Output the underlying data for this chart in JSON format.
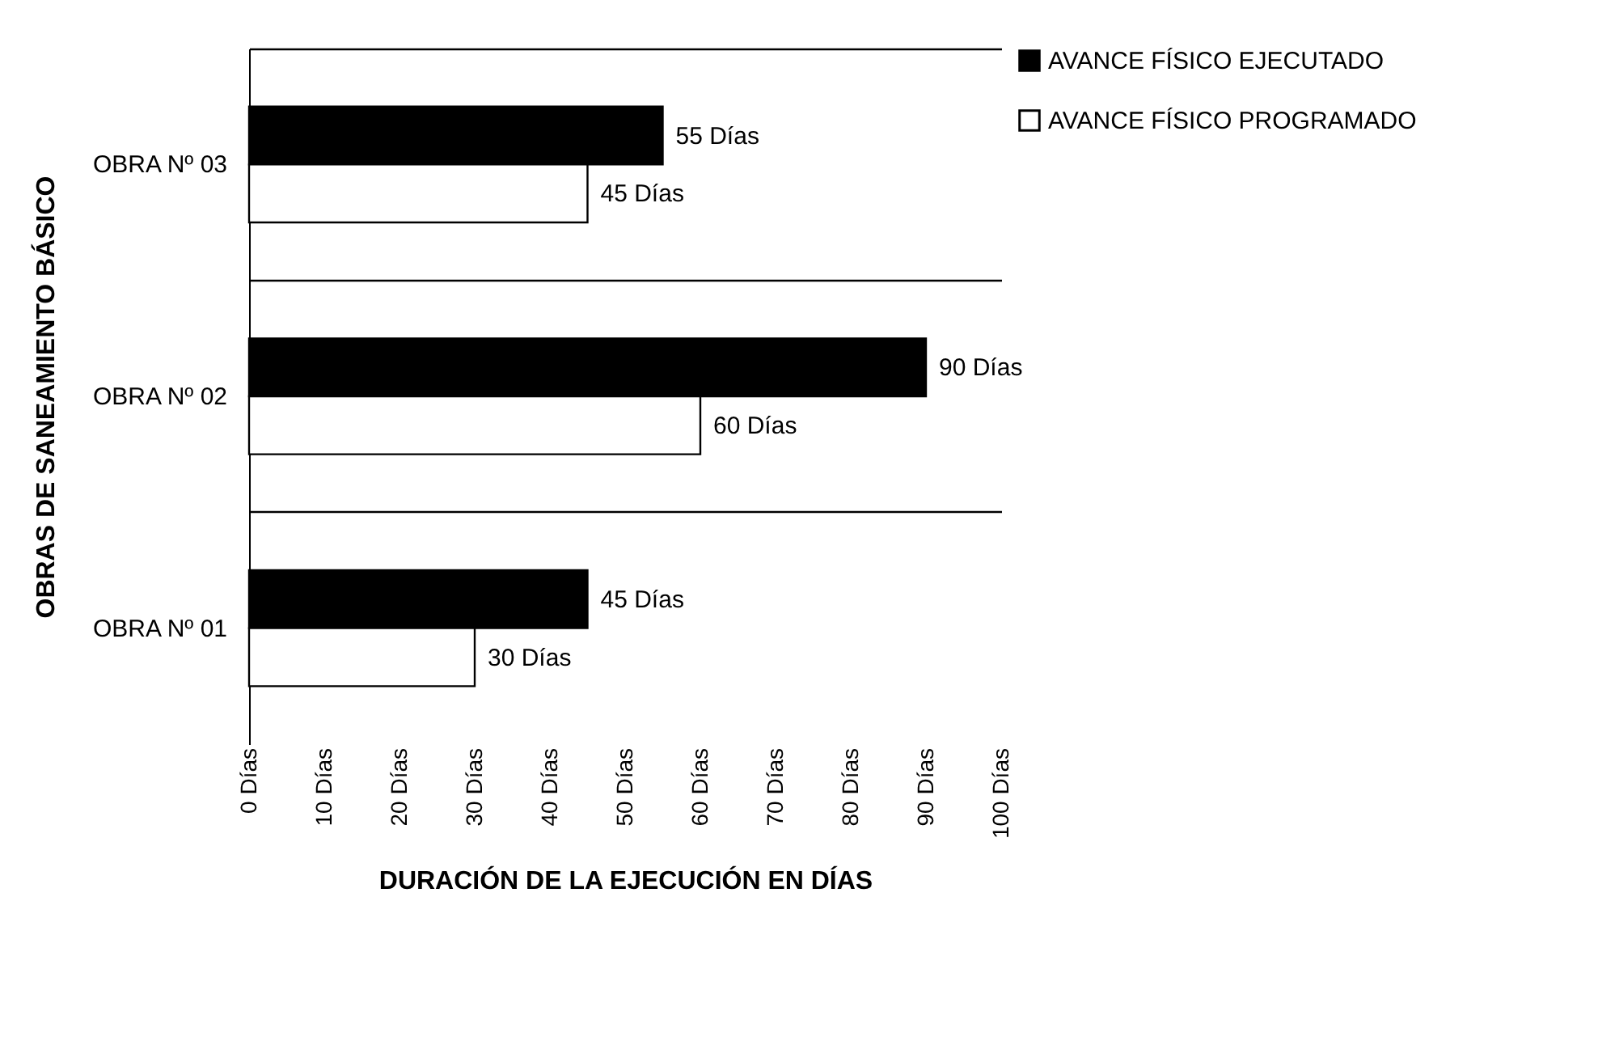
{
  "chart_data": {
    "type": "bar",
    "orientation": "horizontal",
    "categories": [
      "OBRA Nº 03",
      "OBRA Nº 02",
      "OBRA Nº 01"
    ],
    "series": [
      {
        "name": "AVANCE FÍSICO EJECUTADO",
        "color": "#000000",
        "values": [
          55,
          90,
          45
        ],
        "value_labels": [
          "55 Días",
          "90 Días",
          "45 Días"
        ]
      },
      {
        "name": "AVANCE FÍSICO PROGRAMADO",
        "color": "#ffffff",
        "values": [
          45,
          60,
          30
        ],
        "value_labels": [
          "45 Días",
          "60 Días",
          "30 Días"
        ]
      }
    ],
    "xlim": [
      0,
      100
    ],
    "xticks": [
      {
        "value": 0,
        "label": "0 Días"
      },
      {
        "value": 10,
        "label": "10 Días"
      },
      {
        "value": 20,
        "label": "20 Días"
      },
      {
        "value": 30,
        "label": "30 Días"
      },
      {
        "value": 40,
        "label": "40 Días"
      },
      {
        "value": 50,
        "label": "50 Días"
      },
      {
        "value": 60,
        "label": "60 Días"
      },
      {
        "value": 70,
        "label": "70 Días"
      },
      {
        "value": 80,
        "label": "80 Días"
      },
      {
        "value": 90,
        "label": "90 Días"
      },
      {
        "value": 100,
        "label": "100 Días"
      }
    ],
    "xlabel": "DURACIÓN DE LA EJECUCIÓN EN DÍAS",
    "ylabel": "OBRAS DE SANEAMIENTO BÁSICO",
    "grid": "y",
    "legend": "right"
  }
}
